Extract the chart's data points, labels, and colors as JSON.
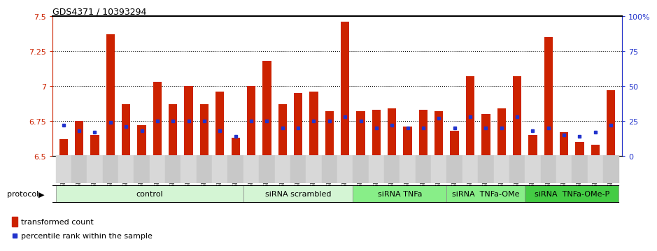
{
  "title": "GDS4371 / 10393294",
  "samples": [
    "GSM790907",
    "GSM790908",
    "GSM790909",
    "GSM790910",
    "GSM790911",
    "GSM790912",
    "GSM790913",
    "GSM790914",
    "GSM790915",
    "GSM790916",
    "GSM790917",
    "GSM790918",
    "GSM790919",
    "GSM790920",
    "GSM790921",
    "GSM790922",
    "GSM790923",
    "GSM790924",
    "GSM790925",
    "GSM790926",
    "GSM790927",
    "GSM790928",
    "GSM790929",
    "GSM790930",
    "GSM790931",
    "GSM790932",
    "GSM790933",
    "GSM790934",
    "GSM790935",
    "GSM790936",
    "GSM790937",
    "GSM790938",
    "GSM790939",
    "GSM790940",
    "GSM790941",
    "GSM790942"
  ],
  "red_values": [
    6.62,
    6.75,
    6.65,
    7.37,
    6.87,
    6.72,
    7.03,
    6.87,
    7.0,
    6.87,
    6.96,
    6.63,
    7.0,
    7.18,
    6.87,
    6.95,
    6.96,
    6.82,
    7.46,
    6.82,
    6.83,
    6.84,
    6.71,
    6.83,
    6.82,
    6.68,
    7.07,
    6.8,
    6.84,
    7.07,
    6.65,
    7.35,
    6.67,
    6.6,
    6.58,
    6.97
  ],
  "blue_values": [
    22,
    18,
    17,
    24,
    21,
    18,
    25,
    25,
    25,
    25,
    18,
    14,
    25,
    25,
    20,
    20,
    25,
    25,
    28,
    25,
    20,
    22,
    20,
    20,
    27,
    20,
    28,
    20,
    20,
    28,
    18,
    20,
    15,
    14,
    17,
    22
  ],
  "groups": [
    {
      "label": "control",
      "start": 0,
      "end": 12,
      "color": "#d4f5d4"
    },
    {
      "label": "siRNA scrambled",
      "start": 12,
      "end": 19,
      "color": "#d4f5d4"
    },
    {
      "label": "siRNA TNFa",
      "start": 19,
      "end": 25,
      "color": "#88dd88"
    },
    {
      "label": "siRNA  TNFa-OMe",
      "start": 25,
      "end": 30,
      "color": "#88dd88"
    },
    {
      "label": "siRNA  TNFa-OMe-P",
      "start": 30,
      "end": 36,
      "color": "#44cc44"
    }
  ],
  "ylim": [
    6.5,
    7.5
  ],
  "yticks": [
    6.5,
    6.75,
    7.0,
    7.25,
    7.5
  ],
  "ytick_labels": [
    "6.5",
    "6.75",
    "7",
    "7.25",
    "7.5"
  ],
  "right_yticks": [
    0,
    25,
    50,
    75,
    100
  ],
  "right_ytick_labels": [
    "0",
    "25",
    "50",
    "75",
    "100%"
  ],
  "hlines": [
    6.75,
    7.0,
    7.25
  ],
  "bar_color": "#cc2200",
  "dot_color": "#2233cc",
  "plot_bg": "#ffffff",
  "legend_items": [
    {
      "label": "transformed count",
      "color": "#cc2200"
    },
    {
      "label": "percentile rank within the sample",
      "color": "#2233cc"
    }
  ]
}
